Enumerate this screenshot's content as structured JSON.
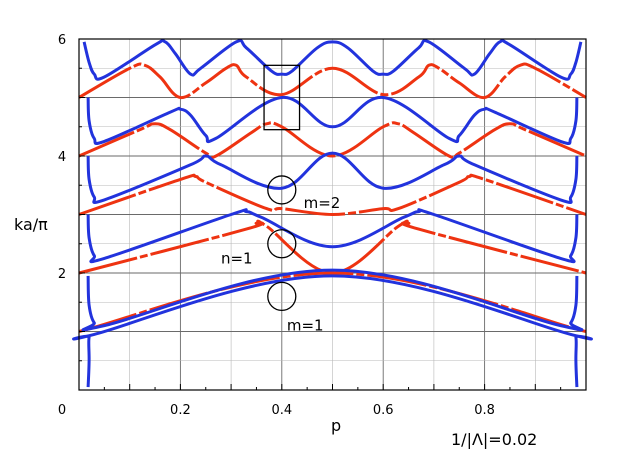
{
  "chart_data": {
    "type": "line",
    "xlabel": "p",
    "ylabel": "ka/π",
    "xlim": [
      0,
      1
    ],
    "ylim": [
      0,
      6
    ],
    "x_ticks": [
      {
        "value": 0,
        "label": "0"
      },
      {
        "value": 0.2,
        "label": "0.2"
      },
      {
        "value": 0.4,
        "label": "0.4"
      },
      {
        "value": 0.6,
        "label": "0.6"
      },
      {
        "value": 0.8,
        "label": "0.8"
      }
    ],
    "y_ticks": [
      {
        "value": 2,
        "label": "2"
      },
      {
        "value": 4,
        "label": "4"
      },
      {
        "value": 6,
        "label": "6"
      }
    ],
    "grid": true,
    "parameter_label": "1/|Λ|=0.02",
    "series_colors": {
      "blue": "#2233dd",
      "red": "#ee3311"
    },
    "blue_bands": [
      {
        "points": [
          [
            0.018,
            0.05
          ],
          [
            0.02,
            0.5
          ],
          [
            0.02,
            0.9
          ],
          [
            0.03,
            0.95
          ],
          [
            0.5,
            1.95
          ],
          [
            0.97,
            0.95
          ],
          [
            0.98,
            0.9
          ],
          [
            0.98,
            0.5
          ],
          [
            0.982,
            0.05
          ]
        ]
      },
      {
        "points": [
          [
            0.018,
            1.95
          ],
          [
            0.02,
            1.45
          ],
          [
            0.03,
            1.15
          ],
          [
            0.05,
            1.1
          ],
          [
            0.5,
            2.05
          ],
          [
            0.95,
            1.1
          ],
          [
            0.97,
            1.15
          ],
          [
            0.98,
            1.45
          ],
          [
            0.982,
            1.95
          ]
        ]
      },
      {
        "points": [
          [
            0.018,
            3.0
          ],
          [
            0.02,
            2.6
          ],
          [
            0.03,
            2.3
          ],
          [
            0.05,
            2.25
          ],
          [
            0.3,
            3.0
          ],
          [
            0.33,
            3.05
          ],
          [
            0.36,
            2.95
          ],
          [
            0.5,
            2.45
          ],
          [
            0.64,
            2.95
          ],
          [
            0.67,
            3.05
          ],
          [
            0.7,
            3.0
          ],
          [
            0.95,
            2.25
          ],
          [
            0.97,
            2.3
          ],
          [
            0.98,
            2.6
          ],
          [
            0.982,
            3.0
          ]
        ]
      },
      {
        "points": [
          [
            0.018,
            4.0
          ],
          [
            0.02,
            3.6
          ],
          [
            0.03,
            3.3
          ],
          [
            0.05,
            3.25
          ],
          [
            0.22,
            3.85
          ],
          [
            0.25,
            4.0
          ],
          [
            0.28,
            3.85
          ],
          [
            0.4,
            3.45
          ],
          [
            0.5,
            4.05
          ],
          [
            0.6,
            3.45
          ],
          [
            0.72,
            3.85
          ],
          [
            0.75,
            4.0
          ],
          [
            0.78,
            3.85
          ],
          [
            0.95,
            3.25
          ],
          [
            0.97,
            3.3
          ],
          [
            0.98,
            3.6
          ],
          [
            0.982,
            4.0
          ]
        ]
      },
      {
        "points": [
          [
            0.018,
            5.0
          ],
          [
            0.02,
            4.6
          ],
          [
            0.03,
            4.3
          ],
          [
            0.05,
            4.25
          ],
          [
            0.18,
            4.75
          ],
          [
            0.2,
            4.8
          ],
          [
            0.22,
            4.7
          ],
          [
            0.25,
            4.35
          ],
          [
            0.27,
            4.3
          ],
          [
            0.4,
            5.0
          ],
          [
            0.5,
            4.5
          ],
          [
            0.6,
            5.0
          ],
          [
            0.73,
            4.3
          ],
          [
            0.75,
            4.35
          ],
          [
            0.78,
            4.7
          ],
          [
            0.8,
            4.8
          ],
          [
            0.82,
            4.75
          ],
          [
            0.95,
            4.25
          ],
          [
            0.97,
            4.3
          ],
          [
            0.98,
            4.6
          ],
          [
            0.982,
            5.0
          ]
        ]
      },
      {
        "points": [
          [
            0.01,
            5.95
          ],
          [
            0.02,
            5.6
          ],
          [
            0.03,
            5.4
          ],
          [
            0.05,
            5.35
          ],
          [
            0.15,
            5.9
          ],
          [
            0.17,
            5.95
          ],
          [
            0.19,
            5.75
          ],
          [
            0.22,
            5.4
          ],
          [
            0.24,
            5.5
          ],
          [
            0.31,
            5.95
          ],
          [
            0.33,
            5.85
          ],
          [
            0.38,
            5.45
          ],
          [
            0.4,
            5.4
          ],
          [
            0.42,
            5.45
          ],
          [
            0.47,
            5.85
          ],
          [
            0.5,
            5.95
          ],
          [
            0.53,
            5.85
          ],
          [
            0.58,
            5.45
          ],
          [
            0.6,
            5.4
          ],
          [
            0.62,
            5.45
          ],
          [
            0.67,
            5.85
          ],
          [
            0.69,
            5.95
          ],
          [
            0.76,
            5.5
          ],
          [
            0.78,
            5.4
          ],
          [
            0.81,
            5.75
          ],
          [
            0.83,
            5.95
          ],
          [
            0.85,
            5.9
          ],
          [
            0.95,
            5.35
          ],
          [
            0.97,
            5.4
          ],
          [
            0.98,
            5.6
          ],
          [
            0.99,
            5.95
          ]
        ]
      }
    ],
    "red_bands": [
      {
        "points": [
          [
            0.0,
            1.0
          ],
          [
            0.5,
            2.0
          ],
          [
            1.0,
            1.0
          ]
        ]
      },
      {
        "points": [
          [
            0.0,
            2.0
          ],
          [
            0.33,
            2.75
          ],
          [
            0.35,
            2.85
          ],
          [
            0.37,
            2.8
          ],
          [
            0.5,
            2.0
          ],
          [
            0.63,
            2.8
          ],
          [
            0.65,
            2.85
          ],
          [
            0.67,
            2.75
          ],
          [
            1.0,
            2.0
          ]
        ]
      },
      {
        "points": [
          [
            0.0,
            3.0
          ],
          [
            0.2,
            3.6
          ],
          [
            0.23,
            3.65
          ],
          [
            0.25,
            3.55
          ],
          [
            0.37,
            3.1
          ],
          [
            0.4,
            3.1
          ],
          [
            0.5,
            3.0
          ],
          [
            0.6,
            3.1
          ],
          [
            0.63,
            3.1
          ],
          [
            0.75,
            3.55
          ],
          [
            0.77,
            3.65
          ],
          [
            0.8,
            3.6
          ],
          [
            1.0,
            3.0
          ]
        ]
      },
      {
        "points": [
          [
            0.0,
            4.0
          ],
          [
            0.12,
            4.45
          ],
          [
            0.15,
            4.55
          ],
          [
            0.18,
            4.45
          ],
          [
            0.25,
            4.05
          ],
          [
            0.27,
            4.0
          ],
          [
            0.34,
            4.4
          ],
          [
            0.37,
            4.55
          ],
          [
            0.4,
            4.5
          ],
          [
            0.5,
            4.0
          ],
          [
            0.6,
            4.5
          ],
          [
            0.63,
            4.55
          ],
          [
            0.66,
            4.4
          ],
          [
            0.73,
            4.0
          ],
          [
            0.75,
            4.05
          ],
          [
            0.82,
            4.45
          ],
          [
            0.85,
            4.55
          ],
          [
            0.88,
            4.45
          ],
          [
            1.0,
            4.0
          ]
        ]
      },
      {
        "points": [
          [
            0.0,
            5.0
          ],
          [
            0.1,
            5.5
          ],
          [
            0.13,
            5.55
          ],
          [
            0.16,
            5.35
          ],
          [
            0.2,
            5.0
          ],
          [
            0.25,
            5.25
          ],
          [
            0.29,
            5.5
          ],
          [
            0.31,
            5.55
          ],
          [
            0.33,
            5.35
          ],
          [
            0.4,
            5.05
          ],
          [
            0.5,
            5.5
          ],
          [
            0.6,
            5.05
          ],
          [
            0.67,
            5.35
          ],
          [
            0.69,
            5.55
          ],
          [
            0.71,
            5.5
          ],
          [
            0.75,
            5.25
          ],
          [
            0.8,
            5.0
          ],
          [
            0.84,
            5.35
          ],
          [
            0.87,
            5.55
          ],
          [
            0.9,
            5.5
          ],
          [
            1.0,
            5.0
          ]
        ]
      }
    ],
    "annotations": [
      {
        "type": "text",
        "text": "m=2",
        "x": 0.443,
        "y": 3.2
      },
      {
        "type": "text",
        "text": "n=1",
        "x": 0.28,
        "y": 2.25
      },
      {
        "type": "text",
        "text": "m=1",
        "x": 0.41,
        "y": 1.1
      },
      {
        "type": "circle",
        "x": 0.4,
        "y": 3.42
      },
      {
        "type": "circle",
        "x": 0.4,
        "y": 2.5
      },
      {
        "type": "circle",
        "x": 0.4,
        "y": 1.6
      },
      {
        "type": "square",
        "x0": 0.365,
        "x1": 0.435,
        "y0": 4.45,
        "y1": 5.55
      }
    ]
  }
}
